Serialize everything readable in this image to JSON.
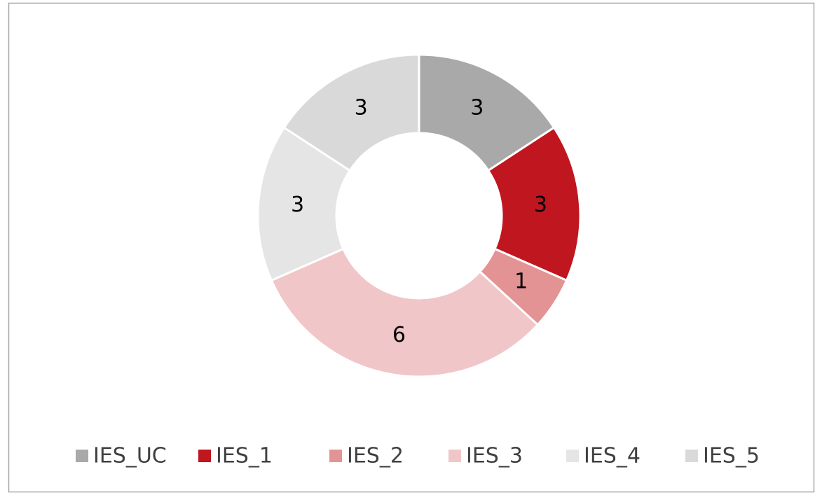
{
  "chart_data": {
    "type": "donut",
    "categories": [
      "IES_UC",
      "IES_1",
      "IES_2",
      "IES_3",
      "IES_4",
      "IES_5"
    ],
    "values": [
      3,
      3,
      1,
      6,
      3,
      3
    ],
    "colors": [
      "#a9a9a9",
      "#c0161f",
      "#e39394",
      "#f0c6c8",
      "#e5e5e5",
      "#d9d9d9"
    ],
    "legend": "bottom"
  }
}
